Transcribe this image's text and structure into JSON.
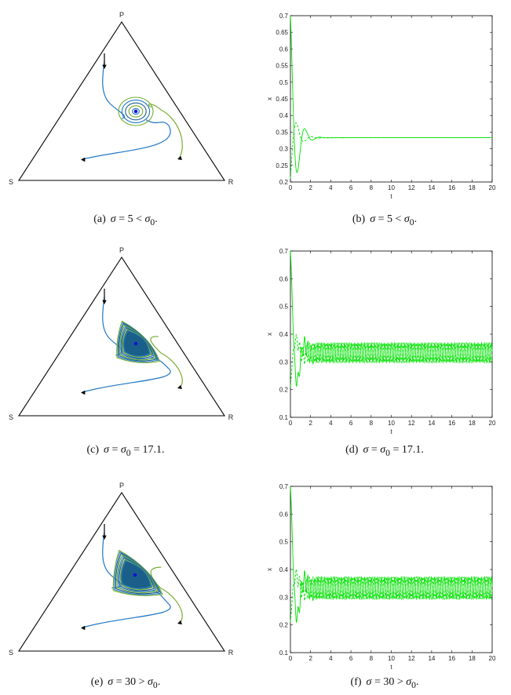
{
  "colors": {
    "triangle": "#000000",
    "trajectory_blue": "#1f77c4",
    "trajectory_green": "#77ac30",
    "trajectory_dark": "#1a5e8a",
    "equilibrium": "#1515d0",
    "timeseries": "#00e000",
    "axes": "#000000"
  },
  "simplex_vertex_labels": {
    "top": "P",
    "left": "S",
    "right": "R"
  },
  "captions": [
    {
      "label": "(a)",
      "sigma": "σ",
      "relation": "= 5 <",
      "sigma0": "σ",
      "sub": "0",
      "end": "."
    },
    {
      "label": "(b)",
      "sigma": "σ",
      "relation": "= 5 <",
      "sigma0": "σ",
      "sub": "0",
      "end": "."
    },
    {
      "label": "(c)",
      "sigma": "σ",
      "relation": "=",
      "sigma0": "σ",
      "sub": "0",
      "end": " = 17.1."
    },
    {
      "label": "(d)",
      "sigma": "σ",
      "relation": "=",
      "sigma0": "σ",
      "sub": "0",
      "end": " = 17.1."
    },
    {
      "label": "(e)",
      "sigma": "σ",
      "relation": "= 30 >",
      "sigma0": "σ",
      "sub": "0",
      "end": "."
    },
    {
      "label": "(f)",
      "sigma": "σ",
      "relation": "= 30 >",
      "sigma0": "σ",
      "sub": "0",
      "end": "."
    }
  ],
  "chart_data": [
    {
      "type": "line",
      "panel": "b",
      "xlabel": "t",
      "ylabel": "x",
      "xlim": [
        0,
        20
      ],
      "ylim": [
        0.2,
        0.7
      ],
      "xticks": [
        "0",
        "2",
        "4",
        "6",
        "8",
        "10",
        "12",
        "14",
        "16",
        "18",
        "20"
      ],
      "yticks": [
        "0.2",
        "0.25",
        "0.3",
        "0.35",
        "0.4",
        "0.45",
        "0.5",
        "0.55",
        "0.6",
        "0.65",
        "0.7"
      ],
      "equilibrium": 0.333,
      "oscillation_amplitude": 0,
      "damping": "strong",
      "series": [
        {
          "style": "solid",
          "start": 0.7
        },
        {
          "style": "dashed",
          "start": 0.2
        }
      ]
    },
    {
      "type": "line",
      "panel": "d",
      "xlabel": "t",
      "ylabel": "x",
      "xlim": [
        0,
        20
      ],
      "ylim": [
        0.1,
        0.7
      ],
      "xticks": [
        "0",
        "2",
        "4",
        "6",
        "8",
        "10",
        "12",
        "14",
        "16",
        "18",
        "20"
      ],
      "yticks": [
        "0.1",
        "0.2",
        "0.3",
        "0.4",
        "0.5",
        "0.6",
        "0.7"
      ],
      "equilibrium": 0.333,
      "oscillation_amplitude": 0.035,
      "damping": "none",
      "series": [
        {
          "style": "solid",
          "start": 0.7
        },
        {
          "style": "dashed",
          "start": 0.2
        }
      ]
    },
    {
      "type": "line",
      "panel": "f",
      "xlabel": "t",
      "ylabel": "x",
      "xlim": [
        0,
        20
      ],
      "ylim": [
        0.1,
        0.7
      ],
      "xticks": [
        "0",
        "2",
        "4",
        "6",
        "8",
        "10",
        "12",
        "14",
        "16",
        "18",
        "20"
      ],
      "yticks": [
        "0.1",
        "0.2",
        "0.3",
        "0.4",
        "0.5",
        "0.6",
        "0.7"
      ],
      "equilibrium": 0.333,
      "oscillation_amplitude": 0.04,
      "damping": "none",
      "series": [
        {
          "style": "solid",
          "start": 0.7
        },
        {
          "style": "dashed",
          "start": 0.2
        }
      ]
    }
  ],
  "simplex_plots": [
    {
      "panel": "a",
      "cycle": "spiral-in"
    },
    {
      "panel": "c",
      "cycle": "limit-cycle"
    },
    {
      "panel": "e",
      "cycle": "limit-cycle-large"
    }
  ]
}
